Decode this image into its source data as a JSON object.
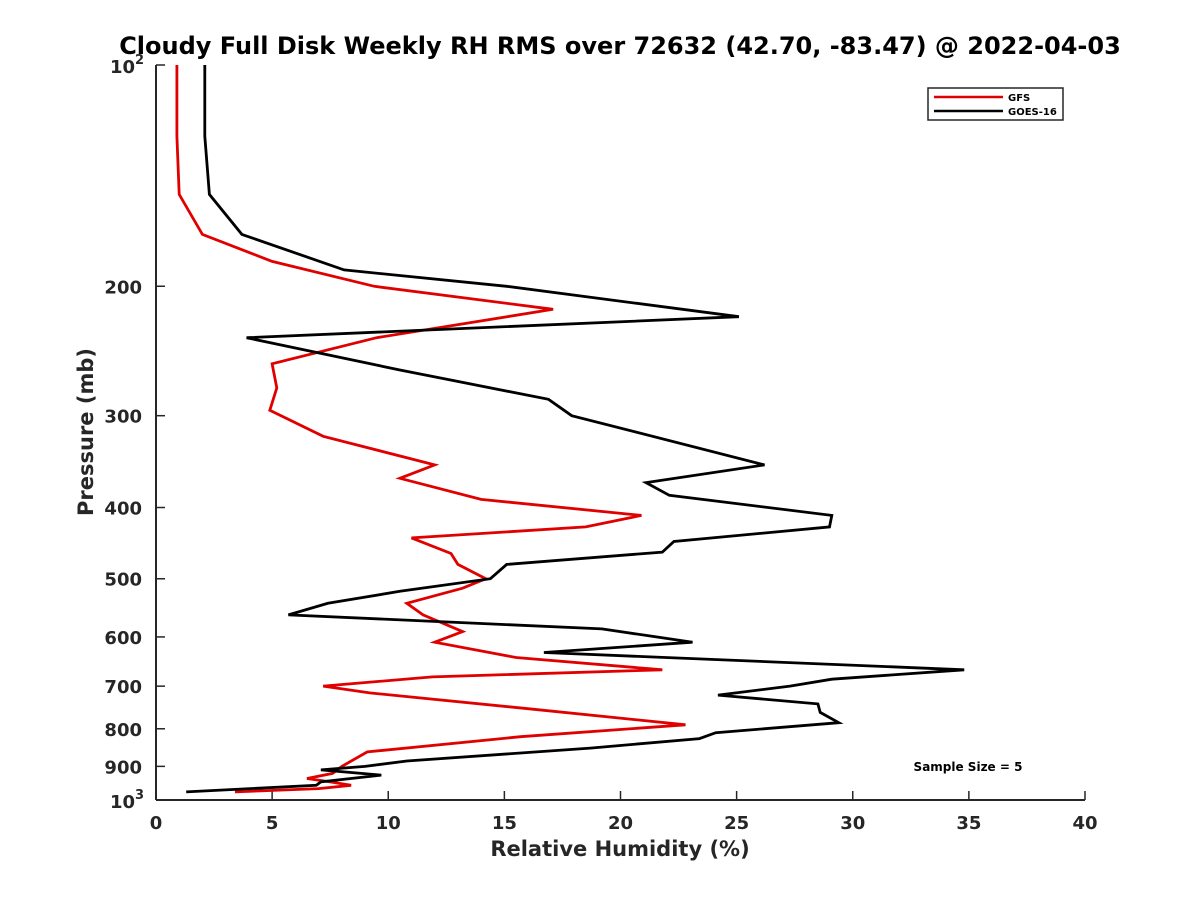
{
  "chart_data": {
    "type": "line",
    "title": "Cloudy Full Disk Weekly RH RMS over 72632 (42.70, -83.47) @ 2022-04-03",
    "xlabel": "Relative Humidity (%)",
    "ylabel": "Pressure (mb)",
    "xlim": [
      0,
      40
    ],
    "ylim": [
      100,
      1000
    ],
    "y_scale": "log",
    "y_reversed": true,
    "x_ticks": [
      0,
      5,
      10,
      15,
      20,
      25,
      30,
      35,
      40
    ],
    "y_ticks": [
      {
        "value": 100,
        "base": "10",
        "exp": "2"
      },
      {
        "value": 200,
        "label": "200"
      },
      {
        "value": 300,
        "label": "300"
      },
      {
        "value": 400,
        "label": "400"
      },
      {
        "value": 500,
        "label": "500"
      },
      {
        "value": 600,
        "label": "600"
      },
      {
        "value": 700,
        "label": "700"
      },
      {
        "value": 800,
        "label": "800"
      },
      {
        "value": 900,
        "label": "900"
      },
      {
        "value": 1000,
        "base": "10",
        "exp": "3"
      }
    ],
    "grid": false,
    "legend_position": "top-right",
    "annotation": "Sample Size = 5",
    "series": [
      {
        "name": "GFS",
        "color": "#e00000",
        "points": [
          [
            0.9,
            100
          ],
          [
            0.9,
            125
          ],
          [
            1.0,
            150
          ],
          [
            2.0,
            170
          ],
          [
            5.0,
            185
          ],
          [
            9.4,
            200
          ],
          [
            17.1,
            215
          ],
          [
            9.5,
            235
          ],
          [
            5.0,
            255
          ],
          [
            5.2,
            275
          ],
          [
            4.9,
            295
          ],
          [
            7.2,
            320
          ],
          [
            12.0,
            350
          ],
          [
            10.5,
            365
          ],
          [
            14.0,
            390
          ],
          [
            20.9,
            410
          ],
          [
            18.5,
            425
          ],
          [
            11.0,
            440
          ],
          [
            12.7,
            462
          ],
          [
            13.0,
            478
          ],
          [
            14.2,
            500
          ],
          [
            13.2,
            515
          ],
          [
            10.8,
            540
          ],
          [
            11.5,
            560
          ],
          [
            13.2,
            590
          ],
          [
            12.0,
            610
          ],
          [
            15.5,
            640
          ],
          [
            21.8,
            665
          ],
          [
            11.9,
            680
          ],
          [
            7.2,
            700
          ],
          [
            9.2,
            715
          ],
          [
            15.8,
            750
          ],
          [
            22.8,
            790
          ],
          [
            15.7,
            820
          ],
          [
            9.1,
            860
          ],
          [
            8.0,
            900
          ],
          [
            7.6,
            920
          ],
          [
            6.5,
            935
          ],
          [
            7.5,
            945
          ],
          [
            8.4,
            955
          ],
          [
            7.0,
            965
          ],
          [
            3.4,
            975
          ]
        ]
      },
      {
        "name": "GOES-16",
        "color": "#000000",
        "points": [
          [
            2.1,
            100
          ],
          [
            2.1,
            125
          ],
          [
            2.3,
            150
          ],
          [
            3.7,
            170
          ],
          [
            8.1,
            190
          ],
          [
            15.1,
            200
          ],
          [
            25.1,
            220
          ],
          [
            3.9,
            235
          ],
          [
            10.5,
            260
          ],
          [
            16.9,
            285
          ],
          [
            17.9,
            300
          ],
          [
            26.2,
            350
          ],
          [
            21.1,
            370
          ],
          [
            22.1,
            385
          ],
          [
            29.1,
            410
          ],
          [
            29.0,
            425
          ],
          [
            22.3,
            445
          ],
          [
            21.8,
            460
          ],
          [
            15.1,
            478
          ],
          [
            14.4,
            500
          ],
          [
            10.5,
            520
          ],
          [
            7.4,
            540
          ],
          [
            5.7,
            560
          ],
          [
            19.2,
            585
          ],
          [
            23.1,
            610
          ],
          [
            16.7,
            630
          ],
          [
            34.8,
            665
          ],
          [
            29.1,
            685
          ],
          [
            27.3,
            700
          ],
          [
            24.2,
            720
          ],
          [
            28.5,
            740
          ],
          [
            28.6,
            760
          ],
          [
            29.4,
            785
          ],
          [
            24.1,
            810
          ],
          [
            23.4,
            825
          ],
          [
            18.7,
            850
          ],
          [
            10.8,
            885
          ],
          [
            9.0,
            900
          ],
          [
            7.1,
            910
          ],
          [
            9.7,
            925
          ],
          [
            7.1,
            945
          ],
          [
            6.9,
            955
          ],
          [
            1.3,
            975
          ]
        ]
      }
    ]
  }
}
